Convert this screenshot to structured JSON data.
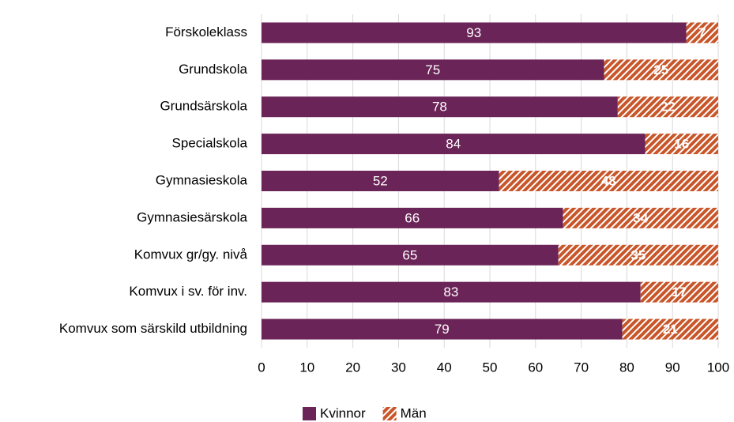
{
  "chart_data": {
    "type": "stacked_barh",
    "categories": [
      "Förskoleklass",
      "Grundskola",
      "Grundsärskola",
      "Specialskola",
      "Gymnasieskola",
      "Gymnasiesärskola",
      "Komvux gr/gy. nivå",
      "Komvux i sv. för inv.",
      "Komvux som särskild utbildning"
    ],
    "series": [
      {
        "name": "Kvinnor",
        "color": "#6b2457",
        "values": [
          93,
          75,
          78,
          84,
          52,
          66,
          65,
          83,
          79
        ]
      },
      {
        "name": "Män",
        "color": "#c8562a",
        "pattern": "diagonal",
        "values": [
          7,
          25,
          22,
          16,
          48,
          34,
          35,
          17,
          21
        ]
      }
    ],
    "xlim": [
      0,
      100
    ],
    "xticks": [
      0,
      10,
      20,
      30,
      40,
      50,
      60,
      70,
      80,
      90,
      100
    ],
    "grid": true,
    "legend": "bottom"
  }
}
